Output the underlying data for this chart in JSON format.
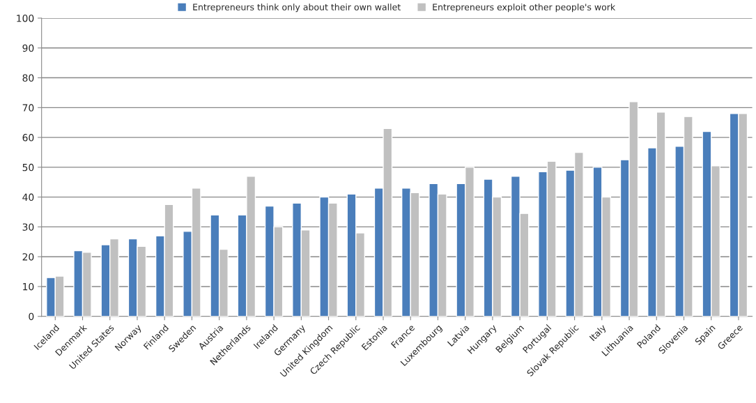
{
  "chart_data": {
    "type": "bar",
    "categories": [
      "Iceland",
      "Denmark",
      "United States",
      "Norway",
      "Finland",
      "Sweden",
      "Austria",
      "Netherlands",
      "Ireland",
      "Germany",
      "United Kingdom",
      "Czech Republic",
      "Estonia",
      "France",
      "Luxembourg",
      "Latvia",
      "Hungary",
      "Belgium",
      "Portugal",
      "Slovak Republic",
      "Italy",
      "Lithuania",
      "Poland",
      "Slovenia",
      "Spain",
      "Greece"
    ],
    "series": [
      {
        "name": "Entrepreneurs think only about their own wallet",
        "color": "#4a7ebb",
        "values": [
          13,
          22,
          24,
          26,
          27,
          28.5,
          34,
          34,
          37,
          38,
          40,
          41,
          43,
          43,
          44.5,
          44.5,
          46,
          47,
          48.5,
          49,
          50,
          52.5,
          56.5,
          57,
          62,
          68
        ]
      },
      {
        "name": "Entrepreneurs exploit other people's work",
        "color": "#c0c0c0",
        "values": [
          13.5,
          21.5,
          26,
          23.5,
          37.5,
          43,
          22.5,
          47,
          30,
          29,
          38,
          28,
          63,
          41.5,
          41,
          50,
          40,
          34.5,
          52,
          55,
          40,
          72,
          68.5,
          67,
          50.5,
          68
        ]
      }
    ],
    "ylim": [
      0,
      100
    ],
    "yticks": [
      0,
      10,
      20,
      30,
      40,
      50,
      60,
      70,
      80,
      90,
      100
    ],
    "grid": "y",
    "legend": "top"
  }
}
